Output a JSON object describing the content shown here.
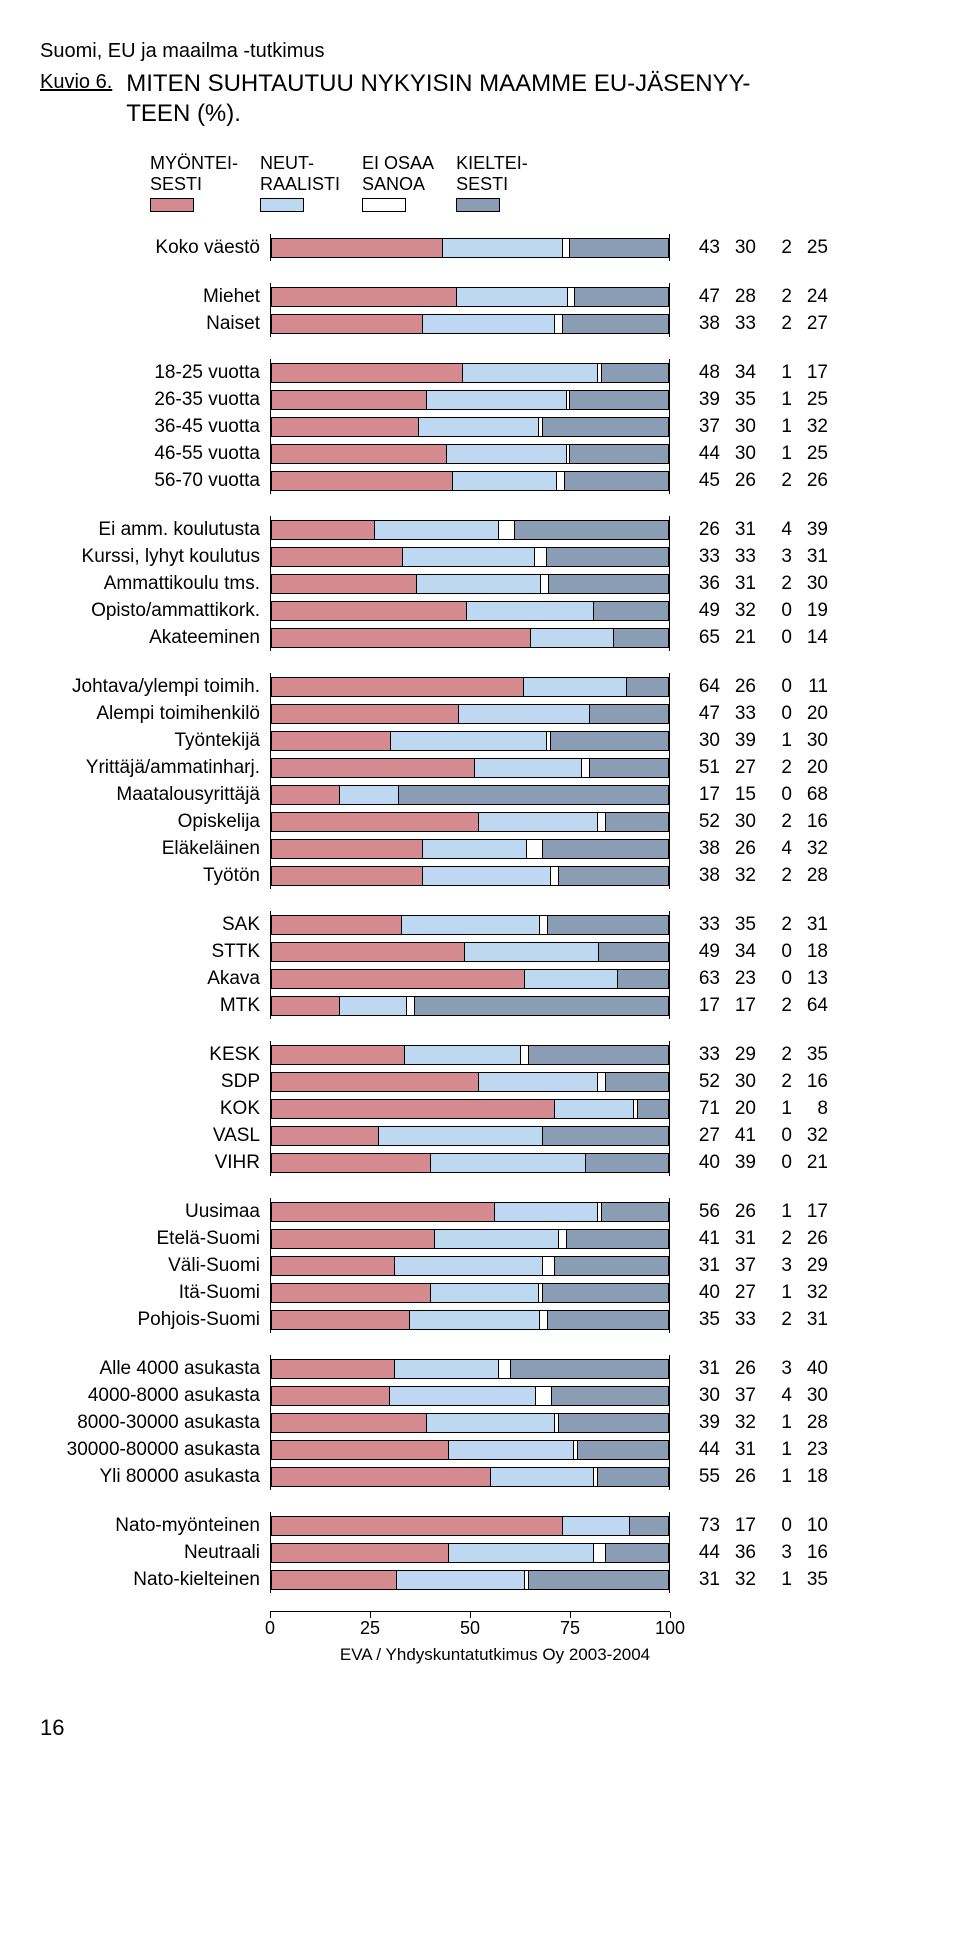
{
  "supertitle": "Suomi, EU ja maailma -tutkimus",
  "kuvio_label": "Kuvio 6.",
  "title": "MITEN SUHTAUTUU NYKYISIN MAAMME EU-JÄSENYY-\nTEEN (%).",
  "legend": [
    {
      "text": "MYÖNTEI-\nSESTI",
      "color": "#d58a90"
    },
    {
      "text": "NEUT-\nRAALISTI",
      "color": "#bdd8f0"
    },
    {
      "text": "EI OSAA\nSANOA",
      "color": "#ffffff"
    },
    {
      "text": "KIELTEI-\nSESTI",
      "color": "#8b9db5"
    }
  ],
  "colors": [
    "#d58a90",
    "#bdd8f0",
    "#ffffff",
    "#8b9db5"
  ],
  "axis": {
    "min": 0,
    "max": 100,
    "ticks": [
      0,
      25,
      50,
      75,
      100
    ]
  },
  "groups": [
    {
      "rows": [
        {
          "label": "Koko väestö",
          "v": [
            43,
            30,
            2,
            25
          ]
        }
      ]
    },
    {
      "rows": [
        {
          "label": "Miehet",
          "v": [
            47,
            28,
            2,
            24
          ]
        },
        {
          "label": "Naiset",
          "v": [
            38,
            33,
            2,
            27
          ]
        }
      ]
    },
    {
      "rows": [
        {
          "label": "18-25 vuotta",
          "v": [
            48,
            34,
            1,
            17
          ]
        },
        {
          "label": "26-35 vuotta",
          "v": [
            39,
            35,
            1,
            25
          ]
        },
        {
          "label": "36-45 vuotta",
          "v": [
            37,
            30,
            1,
            32
          ]
        },
        {
          "label": "46-55 vuotta",
          "v": [
            44,
            30,
            1,
            25
          ]
        },
        {
          "label": "56-70 vuotta",
          "v": [
            45,
            26,
            2,
            26
          ]
        }
      ]
    },
    {
      "rows": [
        {
          "label": "Ei amm. koulutusta",
          "v": [
            26,
            31,
            4,
            39
          ]
        },
        {
          "label": "Kurssi, lyhyt koulutus",
          "v": [
            33,
            33,
            3,
            31
          ]
        },
        {
          "label": "Ammattikoulu tms.",
          "v": [
            36,
            31,
            2,
            30
          ]
        },
        {
          "label": "Opisto/ammattikork.",
          "v": [
            49,
            32,
            0,
            19
          ]
        },
        {
          "label": "Akateeminen",
          "v": [
            65,
            21,
            0,
            14
          ]
        }
      ]
    },
    {
      "rows": [
        {
          "label": "Johtava/ylempi toimih.",
          "v": [
            64,
            26,
            0,
            11
          ]
        },
        {
          "label": "Alempi toimihenkilö",
          "v": [
            47,
            33,
            0,
            20
          ]
        },
        {
          "label": "Työntekijä",
          "v": [
            30,
            39,
            1,
            30
          ]
        },
        {
          "label": "Yrittäjä/ammatinharj.",
          "v": [
            51,
            27,
            2,
            20
          ]
        },
        {
          "label": "Maatalousyrittäjä",
          "v": [
            17,
            15,
            0,
            68
          ]
        },
        {
          "label": "Opiskelija",
          "v": [
            52,
            30,
            2,
            16
          ]
        },
        {
          "label": "Eläkeläinen",
          "v": [
            38,
            26,
            4,
            32
          ]
        },
        {
          "label": "Työtön",
          "v": [
            38,
            32,
            2,
            28
          ]
        }
      ]
    },
    {
      "rows": [
        {
          "label": "SAK",
          "v": [
            33,
            35,
            2,
            31
          ]
        },
        {
          "label": "STTK",
          "v": [
            49,
            34,
            0,
            18
          ]
        },
        {
          "label": "Akava",
          "v": [
            63,
            23,
            0,
            13
          ]
        },
        {
          "label": "MTK",
          "v": [
            17,
            17,
            2,
            64
          ]
        }
      ]
    },
    {
      "rows": [
        {
          "label": "KESK",
          "v": [
            33,
            29,
            2,
            35
          ]
        },
        {
          "label": "SDP",
          "v": [
            52,
            30,
            2,
            16
          ]
        },
        {
          "label": "KOK",
          "v": [
            71,
            20,
            1,
            8
          ]
        },
        {
          "label": "VASL",
          "v": [
            27,
            41,
            0,
            32
          ]
        },
        {
          "label": "VIHR",
          "v": [
            40,
            39,
            0,
            21
          ]
        }
      ]
    },
    {
      "rows": [
        {
          "label": "Uusimaa",
          "v": [
            56,
            26,
            1,
            17
          ]
        },
        {
          "label": "Etelä-Suomi",
          "v": [
            41,
            31,
            2,
            26
          ]
        },
        {
          "label": "Väli-Suomi",
          "v": [
            31,
            37,
            3,
            29
          ]
        },
        {
          "label": "Itä-Suomi",
          "v": [
            40,
            27,
            1,
            32
          ]
        },
        {
          "label": "Pohjois-Suomi",
          "v": [
            35,
            33,
            2,
            31
          ]
        }
      ]
    },
    {
      "rows": [
        {
          "label": "Alle 4000 asukasta",
          "v": [
            31,
            26,
            3,
            40
          ]
        },
        {
          "label": "4000-8000 asukasta",
          "v": [
            30,
            37,
            4,
            30
          ]
        },
        {
          "label": "8000-30000 asukasta",
          "v": [
            39,
            32,
            1,
            28
          ]
        },
        {
          "label": "30000-80000 asukasta",
          "v": [
            44,
            31,
            1,
            23
          ]
        },
        {
          "label": "Yli 80000 asukasta",
          "v": [
            55,
            26,
            1,
            18
          ]
        }
      ]
    },
    {
      "rows": [
        {
          "label": "Nato-myönteinen",
          "v": [
            73,
            17,
            0,
            10
          ]
        },
        {
          "label": "Neutraali",
          "v": [
            44,
            36,
            3,
            16
          ]
        },
        {
          "label": "Nato-kielteinen",
          "v": [
            31,
            32,
            1,
            35
          ]
        }
      ]
    }
  ],
  "footer": "EVA / Yhdyskuntatutkimus Oy 2003-2004",
  "page_number": "16"
}
